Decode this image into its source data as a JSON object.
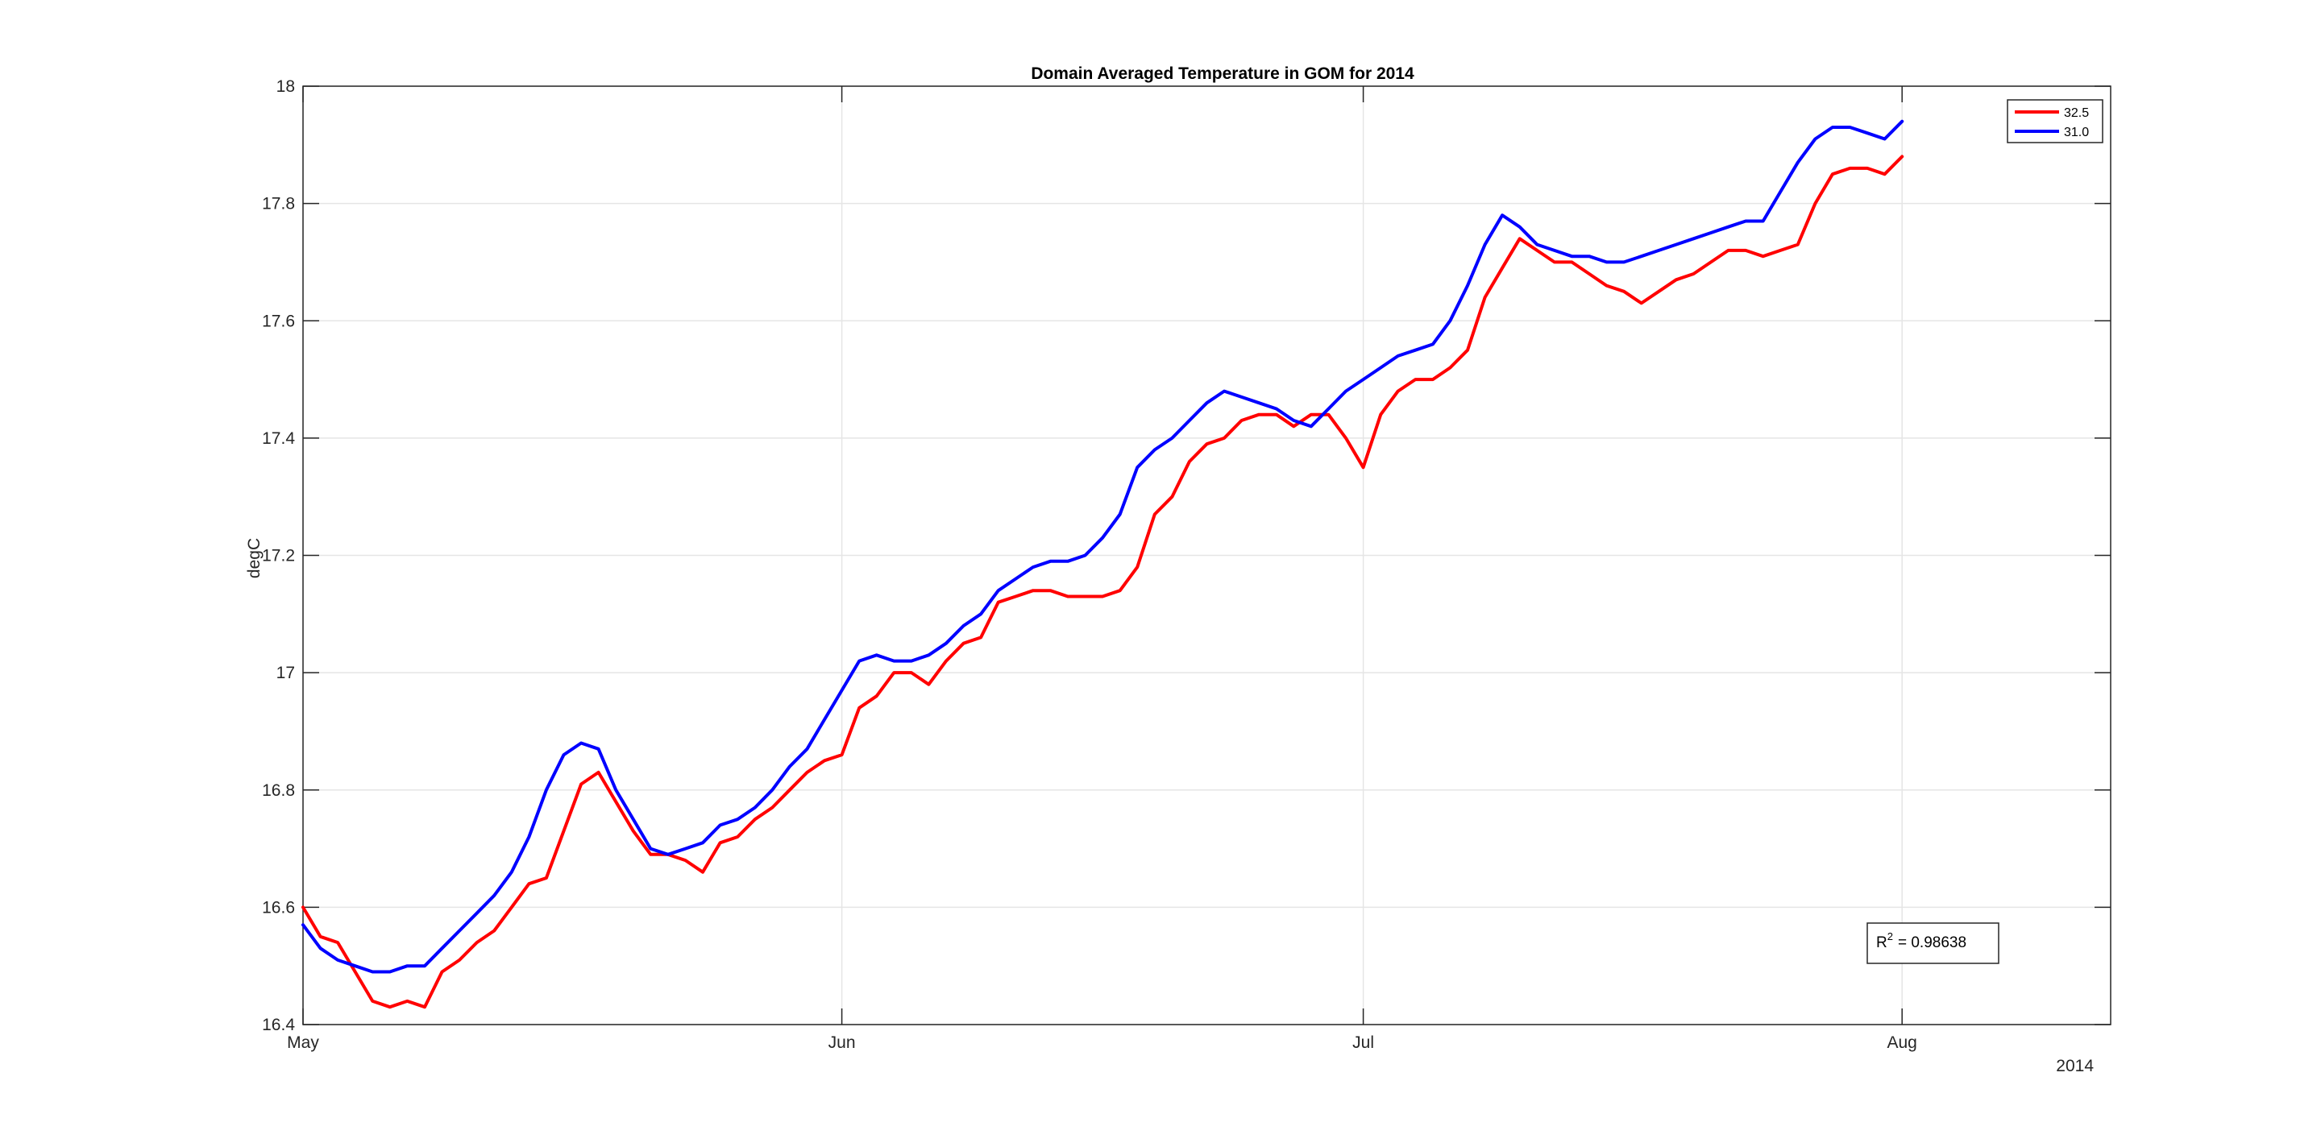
{
  "chart_data": {
    "type": "line",
    "title": "Domain Averaged Temperature in GOM for 2014",
    "xlabel": "",
    "ylabel": "degC",
    "x_axis_year_label": "2014",
    "xlim": [
      "2014-05-01",
      "2014-08-13"
    ],
    "ylim": [
      16.4,
      18.0
    ],
    "x_ticks": [
      {
        "date": "2014-05-01",
        "label": "May"
      },
      {
        "date": "2014-06-01",
        "label": "Jun"
      },
      {
        "date": "2014-07-01",
        "label": "Jul"
      },
      {
        "date": "2014-08-01",
        "label": "Aug"
      }
    ],
    "y_ticks": [
      {
        "value": 16.4,
        "label": "16.4"
      },
      {
        "value": 16.6,
        "label": "16.6"
      },
      {
        "value": 16.8,
        "label": "16.8"
      },
      {
        "value": 17.0,
        "label": "17"
      },
      {
        "value": 17.2,
        "label": "17.2"
      },
      {
        "value": 17.4,
        "label": "17.4"
      },
      {
        "value": 17.6,
        "label": "17.6"
      },
      {
        "value": 17.8,
        "label": "17.8"
      },
      {
        "value": 18.0,
        "label": "18"
      }
    ],
    "grid": true,
    "legend_position": "top-right",
    "annotation": {
      "label": "R",
      "superscript": "2",
      "text": "= 0.98638"
    },
    "series": [
      {
        "name": "32.5",
        "color": "#ff0000",
        "points": [
          [
            "2014-05-01",
            16.6
          ],
          [
            "2014-05-02",
            16.55
          ],
          [
            "2014-05-03",
            16.54
          ],
          [
            "2014-05-04",
            16.49
          ],
          [
            "2014-05-05",
            16.44
          ],
          [
            "2014-05-06",
            16.43
          ],
          [
            "2014-05-07",
            16.44
          ],
          [
            "2014-05-08",
            16.43
          ],
          [
            "2014-05-09",
            16.49
          ],
          [
            "2014-05-10",
            16.51
          ],
          [
            "2014-05-11",
            16.54
          ],
          [
            "2014-05-12",
            16.56
          ],
          [
            "2014-05-13",
            16.6
          ],
          [
            "2014-05-14",
            16.64
          ],
          [
            "2014-05-15",
            16.65
          ],
          [
            "2014-05-16",
            16.73
          ],
          [
            "2014-05-17",
            16.81
          ],
          [
            "2014-05-18",
            16.83
          ],
          [
            "2014-05-19",
            16.78
          ],
          [
            "2014-05-20",
            16.73
          ],
          [
            "2014-05-21",
            16.69
          ],
          [
            "2014-05-22",
            16.69
          ],
          [
            "2014-05-23",
            16.68
          ],
          [
            "2014-05-24",
            16.66
          ],
          [
            "2014-05-25",
            16.71
          ],
          [
            "2014-05-26",
            16.72
          ],
          [
            "2014-05-27",
            16.75
          ],
          [
            "2014-05-28",
            16.77
          ],
          [
            "2014-05-29",
            16.8
          ],
          [
            "2014-05-30",
            16.83
          ],
          [
            "2014-05-31",
            16.85
          ],
          [
            "2014-06-01",
            16.86
          ],
          [
            "2014-06-02",
            16.94
          ],
          [
            "2014-06-03",
            16.96
          ],
          [
            "2014-06-04",
            17.0
          ],
          [
            "2014-06-05",
            17.0
          ],
          [
            "2014-06-06",
            16.98
          ],
          [
            "2014-06-07",
            17.02
          ],
          [
            "2014-06-08",
            17.05
          ],
          [
            "2014-06-09",
            17.06
          ],
          [
            "2014-06-10",
            17.12
          ],
          [
            "2014-06-11",
            17.13
          ],
          [
            "2014-06-12",
            17.14
          ],
          [
            "2014-06-13",
            17.14
          ],
          [
            "2014-06-14",
            17.13
          ],
          [
            "2014-06-15",
            17.13
          ],
          [
            "2014-06-16",
            17.13
          ],
          [
            "2014-06-17",
            17.14
          ],
          [
            "2014-06-18",
            17.18
          ],
          [
            "2014-06-19",
            17.27
          ],
          [
            "2014-06-20",
            17.3
          ],
          [
            "2014-06-21",
            17.36
          ],
          [
            "2014-06-22",
            17.39
          ],
          [
            "2014-06-23",
            17.4
          ],
          [
            "2014-06-24",
            17.43
          ],
          [
            "2014-06-25",
            17.44
          ],
          [
            "2014-06-26",
            17.44
          ],
          [
            "2014-06-27",
            17.42
          ],
          [
            "2014-06-28",
            17.44
          ],
          [
            "2014-06-29",
            17.44
          ],
          [
            "2014-06-30",
            17.4
          ],
          [
            "2014-07-01",
            17.35
          ],
          [
            "2014-07-02",
            17.44
          ],
          [
            "2014-07-03",
            17.48
          ],
          [
            "2014-07-04",
            17.5
          ],
          [
            "2014-07-05",
            17.5
          ],
          [
            "2014-07-06",
            17.52
          ],
          [
            "2014-07-07",
            17.55
          ],
          [
            "2014-07-08",
            17.64
          ],
          [
            "2014-07-09",
            17.69
          ],
          [
            "2014-07-10",
            17.74
          ],
          [
            "2014-07-11",
            17.72
          ],
          [
            "2014-07-12",
            17.7
          ],
          [
            "2014-07-13",
            17.7
          ],
          [
            "2014-07-14",
            17.68
          ],
          [
            "2014-07-15",
            17.66
          ],
          [
            "2014-07-16",
            17.65
          ],
          [
            "2014-07-17",
            17.63
          ],
          [
            "2014-07-18",
            17.65
          ],
          [
            "2014-07-19",
            17.67
          ],
          [
            "2014-07-20",
            17.68
          ],
          [
            "2014-07-21",
            17.7
          ],
          [
            "2014-07-22",
            17.72
          ],
          [
            "2014-07-23",
            17.72
          ],
          [
            "2014-07-24",
            17.71
          ],
          [
            "2014-07-25",
            17.72
          ],
          [
            "2014-07-26",
            17.73
          ],
          [
            "2014-07-27",
            17.8
          ],
          [
            "2014-07-28",
            17.85
          ],
          [
            "2014-07-29",
            17.86
          ],
          [
            "2014-07-30",
            17.86
          ],
          [
            "2014-07-31",
            17.85
          ],
          [
            "2014-08-01",
            17.88
          ]
        ]
      },
      {
        "name": "31.0",
        "color": "#0000ff",
        "points": [
          [
            "2014-05-01",
            16.57
          ],
          [
            "2014-05-02",
            16.53
          ],
          [
            "2014-05-03",
            16.51
          ],
          [
            "2014-05-04",
            16.5
          ],
          [
            "2014-05-05",
            16.49
          ],
          [
            "2014-05-06",
            16.49
          ],
          [
            "2014-05-07",
            16.5
          ],
          [
            "2014-05-08",
            16.5
          ],
          [
            "2014-05-09",
            16.53
          ],
          [
            "2014-05-10",
            16.56
          ],
          [
            "2014-05-11",
            16.59
          ],
          [
            "2014-05-12",
            16.62
          ],
          [
            "2014-05-13",
            16.66
          ],
          [
            "2014-05-14",
            16.72
          ],
          [
            "2014-05-15",
            16.8
          ],
          [
            "2014-05-16",
            16.86
          ],
          [
            "2014-05-17",
            16.88
          ],
          [
            "2014-05-18",
            16.87
          ],
          [
            "2014-05-19",
            16.8
          ],
          [
            "2014-05-20",
            16.75
          ],
          [
            "2014-05-21",
            16.7
          ],
          [
            "2014-05-22",
            16.69
          ],
          [
            "2014-05-23",
            16.7
          ],
          [
            "2014-05-24",
            16.71
          ],
          [
            "2014-05-25",
            16.74
          ],
          [
            "2014-05-26",
            16.75
          ],
          [
            "2014-05-27",
            16.77
          ],
          [
            "2014-05-28",
            16.8
          ],
          [
            "2014-05-29",
            16.84
          ],
          [
            "2014-05-30",
            16.87
          ],
          [
            "2014-05-31",
            16.92
          ],
          [
            "2014-06-01",
            16.97
          ],
          [
            "2014-06-02",
            17.02
          ],
          [
            "2014-06-03",
            17.03
          ],
          [
            "2014-06-04",
            17.02
          ],
          [
            "2014-06-05",
            17.02
          ],
          [
            "2014-06-06",
            17.03
          ],
          [
            "2014-06-07",
            17.05
          ],
          [
            "2014-06-08",
            17.08
          ],
          [
            "2014-06-09",
            17.1
          ],
          [
            "2014-06-10",
            17.14
          ],
          [
            "2014-06-11",
            17.16
          ],
          [
            "2014-06-12",
            17.18
          ],
          [
            "2014-06-13",
            17.19
          ],
          [
            "2014-06-14",
            17.19
          ],
          [
            "2014-06-15",
            17.2
          ],
          [
            "2014-06-16",
            17.23
          ],
          [
            "2014-06-17",
            17.27
          ],
          [
            "2014-06-18",
            17.35
          ],
          [
            "2014-06-19",
            17.38
          ],
          [
            "2014-06-20",
            17.4
          ],
          [
            "2014-06-21",
            17.43
          ],
          [
            "2014-06-22",
            17.46
          ],
          [
            "2014-06-23",
            17.48
          ],
          [
            "2014-06-24",
            17.47
          ],
          [
            "2014-06-25",
            17.46
          ],
          [
            "2014-06-26",
            17.45
          ],
          [
            "2014-06-27",
            17.43
          ],
          [
            "2014-06-28",
            17.42
          ],
          [
            "2014-06-29",
            17.45
          ],
          [
            "2014-06-30",
            17.48
          ],
          [
            "2014-07-01",
            17.5
          ],
          [
            "2014-07-02",
            17.52
          ],
          [
            "2014-07-03",
            17.54
          ],
          [
            "2014-07-04",
            17.55
          ],
          [
            "2014-07-05",
            17.56
          ],
          [
            "2014-07-06",
            17.6
          ],
          [
            "2014-07-07",
            17.66
          ],
          [
            "2014-07-08",
            17.73
          ],
          [
            "2014-07-09",
            17.78
          ],
          [
            "2014-07-10",
            17.76
          ],
          [
            "2014-07-11",
            17.73
          ],
          [
            "2014-07-12",
            17.72
          ],
          [
            "2014-07-13",
            17.71
          ],
          [
            "2014-07-14",
            17.71
          ],
          [
            "2014-07-15",
            17.7
          ],
          [
            "2014-07-16",
            17.7
          ],
          [
            "2014-07-17",
            17.71
          ],
          [
            "2014-07-18",
            17.72
          ],
          [
            "2014-07-19",
            17.73
          ],
          [
            "2014-07-20",
            17.74
          ],
          [
            "2014-07-21",
            17.75
          ],
          [
            "2014-07-22",
            17.76
          ],
          [
            "2014-07-23",
            17.77
          ],
          [
            "2014-07-24",
            17.77
          ],
          [
            "2014-07-25",
            17.82
          ],
          [
            "2014-07-26",
            17.87
          ],
          [
            "2014-07-27",
            17.91
          ],
          [
            "2014-07-28",
            17.93
          ],
          [
            "2014-07-29",
            17.93
          ],
          [
            "2014-07-30",
            17.92
          ],
          [
            "2014-07-31",
            17.91
          ],
          [
            "2014-08-01",
            17.94
          ]
        ]
      }
    ]
  }
}
